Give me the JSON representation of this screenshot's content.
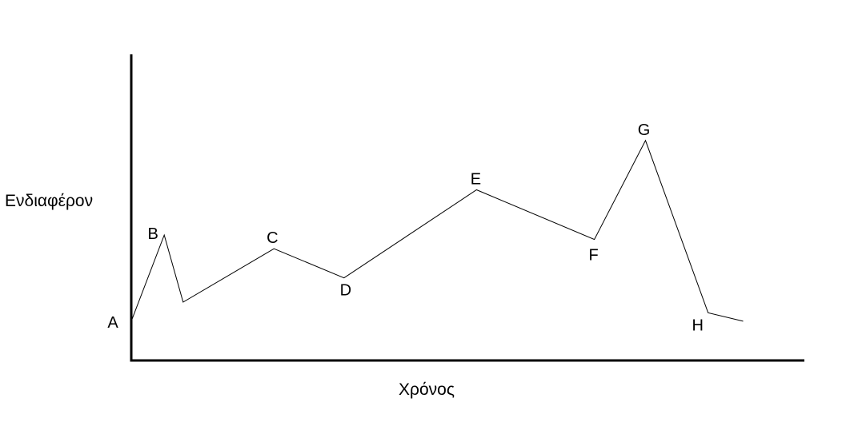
{
  "chart_data": {
    "type": "line",
    "title": "",
    "xlabel": "Χρόνος",
    "ylabel": "Ενδιαφέρον",
    "grid": false,
    "legend": "none",
    "ticks": false,
    "xlim": [
      0,
      100
    ],
    "ylim": [
      0,
      100
    ],
    "series": [
      {
        "color": "#000000",
        "points": [
          {
            "x": 0.0,
            "y": 14.4,
            "label": "A"
          },
          {
            "x": 4.9,
            "y": 46.0,
            "label": "B"
          },
          {
            "x": 7.7,
            "y": 21.4,
            "label": ""
          },
          {
            "x": 21.2,
            "y": 41.0,
            "label": "C"
          },
          {
            "x": 31.6,
            "y": 30.3,
            "label": "D"
          },
          {
            "x": 51.3,
            "y": 62.6,
            "label": "E"
          },
          {
            "x": 68.8,
            "y": 44.4,
            "label": "F"
          },
          {
            "x": 76.4,
            "y": 80.7,
            "label": "G"
          },
          {
            "x": 85.7,
            "y": 17.5,
            "label": "H"
          },
          {
            "x": 90.9,
            "y": 14.4,
            "label": ""
          }
        ]
      }
    ]
  }
}
